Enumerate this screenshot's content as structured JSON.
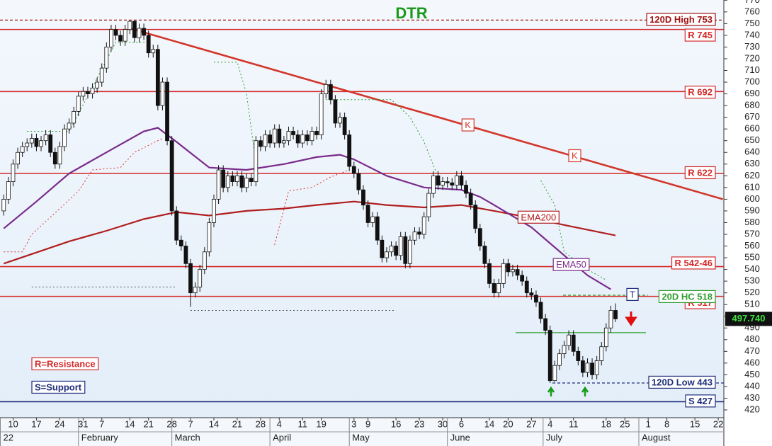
{
  "chart_data": {
    "type": "candlestick",
    "title": "DTR",
    "candles": {
      "x": [
        0,
        1,
        2,
        3,
        4,
        5,
        6,
        7,
        8,
        9,
        10,
        11,
        12,
        13,
        14,
        15,
        16,
        17,
        18,
        19,
        20,
        21,
        22,
        23,
        24,
        25,
        26,
        27,
        28,
        29,
        30,
        31,
        32,
        33,
        34,
        35,
        36,
        37,
        38,
        39,
        40,
        41,
        42,
        43,
        44,
        45,
        46,
        47,
        48,
        49,
        50,
        51,
        52,
        53,
        54,
        55,
        56,
        57,
        58,
        59,
        60,
        61,
        62,
        63,
        64,
        65,
        66,
        67,
        68,
        69,
        70,
        71,
        72,
        73,
        74,
        75,
        76,
        77,
        78,
        79,
        80,
        81,
        82,
        83,
        84,
        85,
        86,
        87,
        88,
        89,
        90,
        91,
        92,
        93,
        94,
        95,
        96,
        97,
        98,
        99,
        100,
        101,
        102,
        103,
        104,
        105,
        106,
        107,
        108,
        109,
        110,
        111,
        112,
        113,
        114,
        115,
        116,
        117,
        118,
        119,
        120,
        121,
        122,
        123,
        124,
        125,
        126,
        127,
        128,
        129,
        130,
        131
      ],
      "open": [
        590,
        600,
        615,
        630,
        640,
        645,
        648,
        652,
        645,
        650,
        655,
        640,
        630,
        645,
        660,
        665,
        675,
        688,
        692,
        690,
        695,
        700,
        712,
        730,
        745,
        740,
        735,
        745,
        752,
        738,
        746,
        740,
        725,
        728,
        680,
        700,
        650,
        590,
        565,
        560,
        545,
        520,
        525,
        540,
        555,
        580,
        600,
        625,
        610,
        620,
        615,
        620,
        610,
        618,
        615,
        650,
        645,
        655,
        648,
        660,
        648,
        650,
        658,
        655,
        648,
        655,
        650,
        658,
        655,
        690,
        698,
        685,
        665,
        670,
        655,
        628,
        622,
        608,
        595,
        580,
        585,
        565,
        550,
        555,
        560,
        552,
        568,
        545,
        565,
        572,
        570,
        585,
        605,
        620,
        612,
        615,
        614,
        612,
        620,
        612,
        605,
        595,
        575,
        560,
        545,
        528,
        520,
        528,
        545,
        538,
        540,
        535,
        530,
        520,
        518,
        512,
        498,
        488,
        445,
        458,
        468,
        475,
        484,
        470,
        462,
        452,
        460,
        450,
        462,
        474,
        490,
        505
      ],
      "high": [
        604,
        619,
        634,
        644,
        649,
        652,
        656,
        656,
        654,
        659,
        659,
        644,
        649,
        664,
        669,
        679,
        692,
        696,
        696,
        699,
        704,
        716,
        734,
        749,
        749,
        744,
        749,
        753,
        753,
        750,
        750,
        744,
        732,
        732,
        704,
        704,
        654,
        594,
        569,
        564,
        549,
        529,
        544,
        559,
        584,
        604,
        629,
        629,
        624,
        624,
        624,
        624,
        622,
        622,
        654,
        654,
        659,
        659,
        664,
        664,
        654,
        662,
        662,
        659,
        659,
        659,
        662,
        662,
        694,
        702,
        702,
        689,
        674,
        674,
        659,
        632,
        626,
        612,
        599,
        589,
        589,
        569,
        559,
        564,
        564,
        572,
        572,
        569,
        576,
        576,
        589,
        609,
        624,
        624,
        619,
        619,
        618,
        624,
        624,
        616,
        609,
        599,
        579,
        564,
        549,
        532,
        532,
        549,
        549,
        544,
        544,
        539,
        534,
        524,
        522,
        516,
        502,
        492,
        462,
        472,
        479,
        488,
        488,
        474,
        466,
        464,
        464,
        466,
        478,
        494,
        509,
        511
      ],
      "low": [
        586,
        596,
        611,
        626,
        636,
        641,
        644,
        641,
        641,
        646,
        636,
        626,
        626,
        641,
        656,
        661,
        671,
        684,
        686,
        686,
        691,
        696,
        708,
        726,
        736,
        731,
        731,
        741,
        734,
        734,
        736,
        721,
        721,
        676,
        676,
        646,
        586,
        561,
        556,
        541,
        508,
        516,
        521,
        536,
        551,
        576,
        596,
        606,
        606,
        611,
        611,
        606,
        606,
        611,
        611,
        641,
        641,
        644,
        644,
        644,
        644,
        646,
        651,
        644,
        644,
        646,
        646,
        651,
        651,
        686,
        681,
        661,
        661,
        651,
        624,
        618,
        604,
        591,
        576,
        576,
        561,
        546,
        546,
        551,
        548,
        548,
        541,
        541,
        561,
        566,
        566,
        581,
        601,
        608,
        608,
        610,
        608,
        608,
        608,
        601,
        591,
        571,
        556,
        541,
        524,
        516,
        516,
        524,
        534,
        534,
        531,
        526,
        516,
        514,
        508,
        494,
        484,
        443,
        444,
        454,
        464,
        471,
        466,
        458,
        448,
        448,
        446,
        446,
        458,
        470,
        486,
        495
      ],
      "close": [
        600,
        615,
        630,
        640,
        645,
        648,
        652,
        645,
        650,
        655,
        640,
        630,
        645,
        660,
        665,
        675,
        688,
        692,
        690,
        695,
        700,
        712,
        730,
        745,
        740,
        735,
        745,
        752,
        738,
        746,
        740,
        725,
        728,
        680,
        700,
        650,
        590,
        565,
        560,
        545,
        520,
        525,
        540,
        555,
        580,
        600,
        625,
        610,
        620,
        615,
        620,
        610,
        618,
        615,
        650,
        645,
        655,
        648,
        660,
        648,
        650,
        658,
        655,
        648,
        655,
        650,
        658,
        655,
        690,
        698,
        685,
        665,
        670,
        655,
        628,
        622,
        608,
        595,
        580,
        585,
        565,
        550,
        555,
        560,
        552,
        568,
        545,
        565,
        572,
        570,
        585,
        605,
        620,
        612,
        615,
        614,
        612,
        620,
        612,
        605,
        595,
        575,
        560,
        545,
        528,
        520,
        528,
        545,
        538,
        540,
        535,
        530,
        520,
        518,
        512,
        498,
        488,
        445,
        458,
        468,
        475,
        484,
        470,
        462,
        452,
        460,
        450,
        462,
        474,
        490,
        505,
        497.74
      ]
    },
    "ylim": [
      420,
      770
    ],
    "yticks": [
      420,
      430,
      440,
      450,
      460,
      470,
      480,
      490,
      500,
      510,
      520,
      530,
      540,
      550,
      560,
      570,
      580,
      590,
      600,
      610,
      620,
      630,
      640,
      650,
      660,
      670,
      680,
      690,
      700,
      710,
      720,
      730,
      740,
      750,
      760,
      770
    ],
    "xlim": [
      -0.8,
      154.2
    ],
    "xticks": [
      {
        "value": 2,
        "label": "10"
      },
      {
        "value": 7,
        "label": "17"
      },
      {
        "value": 12,
        "label": "24"
      },
      {
        "value": 17,
        "label": "31"
      },
      {
        "value": 21,
        "label": "7"
      },
      {
        "value": 27,
        "label": "14"
      },
      {
        "value": 31,
        "label": "21"
      },
      {
        "value": 36,
        "label": "28"
      },
      {
        "value": 40,
        "label": "7"
      },
      {
        "value": 45,
        "label": "14"
      },
      {
        "value": 50,
        "label": "21"
      },
      {
        "value": 55,
        "label": "28"
      },
      {
        "value": 59,
        "label": "4"
      },
      {
        "value": 64,
        "label": "11"
      },
      {
        "value": 68,
        "label": "19"
      },
      {
        "value": 75,
        "label": "3"
      },
      {
        "value": 78,
        "label": "9"
      },
      {
        "value": 84,
        "label": "16"
      },
      {
        "value": 89,
        "label": "23"
      },
      {
        "value": 94,
        "label": "30"
      },
      {
        "value": 98,
        "label": "6"
      },
      {
        "value": 104,
        "label": "14"
      },
      {
        "value": 108,
        "label": "20"
      },
      {
        "value": 113,
        "label": "27"
      },
      {
        "value": 117,
        "label": "4"
      },
      {
        "value": 122,
        "label": "11"
      },
      {
        "value": 129,
        "label": "18"
      },
      {
        "value": 133,
        "label": "25"
      },
      {
        "value": 138,
        "label": "1"
      },
      {
        "value": 142,
        "label": "8"
      },
      {
        "value": 148,
        "label": "15"
      },
      {
        "value": 153,
        "label": "22"
      }
    ],
    "months": [
      {
        "value": -0.8,
        "label": "22"
      },
      {
        "value": 16,
        "label": "February"
      },
      {
        "value": 36,
        "label": "March"
      },
      {
        "value": 57,
        "label": "April"
      },
      {
        "value": 74,
        "label": "May"
      },
      {
        "value": 95,
        "label": "June"
      },
      {
        "value": 115.5,
        "label": "July"
      },
      {
        "value": 136,
        "label": "August"
      }
    ],
    "series": [
      {
        "name": "EMA200",
        "color": "#b01e1e",
        "style": "solid",
        "x": [
          0,
          14,
          22,
          30,
          37,
          44,
          52,
          60,
          67,
          75,
          82,
          90,
          98,
          105,
          113,
          120,
          131
        ],
        "values": [
          545,
          564,
          573,
          583,
          589,
          586,
          590,
          592,
          595,
          598,
          595,
          593,
          595,
          590,
          584,
          578,
          569
        ]
      },
      {
        "name": "EMA50",
        "color": "#7a2a8a",
        "style": "solid",
        "x": [
          0,
          7,
          14,
          22,
          30,
          33,
          37,
          44,
          52,
          60,
          67,
          72,
          75,
          82,
          90,
          98,
          102,
          105,
          113,
          120,
          125,
          130
        ],
        "values": [
          575,
          598,
          622,
          640,
          658,
          661,
          649,
          627,
          625,
          630,
          636,
          638,
          634,
          620,
          610,
          608,
          602,
          595,
          576,
          552,
          535,
          523
        ]
      },
      {
        "color": "#d2372b",
        "style": "solid",
        "x": [
          27,
          154
        ],
        "values": [
          746,
          600
        ]
      },
      {
        "color": "#2e9e2e",
        "style": "dotted",
        "x": [
          5,
          14,
          16,
          24,
          31,
          32,
          45,
          50,
          52,
          54,
          55,
          69,
          83,
          87,
          90,
          93,
          94,
          115,
          118,
          120,
          125,
          129
        ],
        "values": [
          658,
          658,
          673,
          734,
          734,
          null,
          717,
          717,
          690,
          631,
          null,
          685,
          685,
          670,
          649,
          619,
          null,
          616,
          595,
          555,
          540,
          531
        ]
      },
      {
        "color": "#e03030",
        "style": "dotted",
        "x": [
          0,
          4,
          6,
          12,
          16,
          19,
          25,
          28,
          34,
          35,
          58,
          61,
          66,
          70,
          74
        ],
        "values": [
          555,
          555,
          570,
          592,
          607,
          625,
          627,
          640,
          652,
          null,
          561,
          607,
          610,
          619,
          625
        ]
      },
      {
        "color": "#555555",
        "style": "dotted",
        "x": [
          6,
          37,
          38,
          40,
          84
        ],
        "values": [
          525,
          525,
          null,
          505,
          505
        ]
      }
    ],
    "trend_labels": [
      "K",
      "K"
    ],
    "levels": [
      {
        "value": 753,
        "label": "120D High 753",
        "color": "#a01010",
        "style": "dashed"
      },
      {
        "value": 745,
        "label": "R 745",
        "color": "#d42a2a",
        "style": "solid"
      },
      {
        "value": 692,
        "label": "R 692",
        "color": "#d42a2a",
        "style": "solid"
      },
      {
        "value": 622,
        "label": "R 622",
        "color": "#d42a2a",
        "style": "solid"
      },
      {
        "value": 542.46,
        "label": "R 542-46",
        "color": "#d42a2a",
        "style": "solid"
      },
      {
        "value": 517,
        "label": "R 517",
        "color": "#d42a2a",
        "style": "solid"
      },
      {
        "value": 518,
        "label": "20D HC 518",
        "color": "#2e9e2e",
        "style": "dashed"
      },
      {
        "value": 443,
        "label": "120D Low 443",
        "color": "#1f2f7a",
        "style": "dashed"
      },
      {
        "value": 427,
        "label": "S 427",
        "color": "#1f2f7a",
        "style": "solid"
      }
    ],
    "hc_line": {
      "value": 486,
      "color": "#2e9e2e"
    },
    "t_label": "T",
    "notes": [
      {
        "label": "R=Resistance",
        "color": "#d42a2a"
      },
      {
        "label": "S=Support",
        "color": "#1f2f7a"
      }
    ],
    "last_price": {
      "value": 497.74,
      "label": "497.740"
    }
  }
}
